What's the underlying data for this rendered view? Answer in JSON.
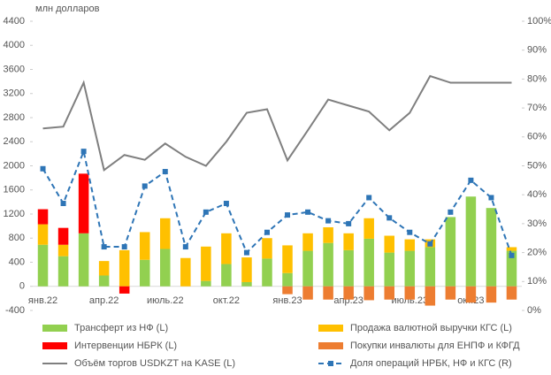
{
  "chart_data": {
    "type": "bar",
    "y_label": "млн долларов",
    "categories": [
      "янв.22",
      null,
      null,
      "апр.22",
      null,
      null,
      "июль.22",
      null,
      null,
      "окт.22",
      null,
      null,
      "янв.23",
      null,
      null,
      "апр.23",
      null,
      null,
      "июль.23",
      null,
      null,
      "окт.23",
      null,
      null
    ],
    "series": [
      {
        "name": "Трансферт из НФ (L)",
        "color": "#92d050",
        "type": "bar",
        "values": [
          690,
          500,
          880,
          180,
          0,
          440,
          620,
          0,
          90,
          370,
          70,
          460,
          220,
          590,
          720,
          600,
          790,
          560,
          590,
          650,
          1150,
          1490,
          1300,
          590
        ]
      },
      {
        "name": "Продажа валютной выручки КГС (L)",
        "color": "#ffc000",
        "type": "bar",
        "values": [
          340,
          190,
          0,
          240,
          600,
          460,
          510,
          470,
          570,
          510,
          410,
          340,
          460,
          290,
          260,
          280,
          340,
          280,
          190,
          130,
          0,
          0,
          0,
          60
        ]
      },
      {
        "name": "Интервенции НБРК (L)",
        "color": "#ff0000",
        "type": "bar",
        "values": [
          250,
          280,
          990,
          0,
          -120,
          0,
          0,
          0,
          0,
          0,
          0,
          0,
          0,
          0,
          0,
          0,
          0,
          0,
          0,
          0,
          0,
          0,
          0,
          0
        ]
      },
      {
        "name": "Покупки инвалюты для ЕНПФ и КФГД",
        "color": "#ed7d31",
        "type": "bar",
        "values": [
          0,
          0,
          0,
          0,
          0,
          0,
          0,
          0,
          0,
          0,
          0,
          0,
          -130,
          -220,
          -220,
          -220,
          -230,
          -220,
          -220,
          -320,
          -220,
          -270,
          -270,
          -220
        ]
      },
      {
        "name": "Объём торгов USDKZT на KASE (L)",
        "color": "#7f7f7f",
        "type": "line",
        "values": [
          2620,
          2650,
          3380,
          1930,
          2180,
          2100,
          2370,
          2150,
          2000,
          2400,
          2880,
          2940,
          2090,
          2590,
          3100,
          3000,
          2900,
          2590,
          2880,
          3490,
          3380,
          3380,
          3380,
          3380
        ]
      },
      {
        "name": "Доля операций НРБК, НФ и КГС (R)",
        "color": "#2e75b6",
        "type": "line",
        "axis": "y2",
        "dashed": true,
        "marker": "square",
        "values": [
          49,
          37,
          55,
          22,
          22,
          43,
          48,
          22,
          34,
          37,
          20,
          27,
          33,
          34,
          31,
          30,
          39,
          32,
          27,
          23,
          34,
          45,
          39,
          19
        ]
      }
    ],
    "ylim": [
      -400,
      4400
    ],
    "yticks": [
      -400,
      0,
      400,
      800,
      1200,
      1600,
      2000,
      2400,
      2800,
      3200,
      3600,
      4000,
      4400
    ],
    "y2lim": [
      0,
      100
    ],
    "y2ticks": [
      {
        "value": 0,
        "label": "0%"
      },
      {
        "value": 10,
        "label": "10%"
      },
      {
        "value": 20,
        "label": "20%"
      },
      {
        "value": 30,
        "label": "30%"
      },
      {
        "value": 40,
        "label": "40%"
      },
      {
        "value": 50,
        "label": "50%"
      },
      {
        "value": 60,
        "label": "60%"
      },
      {
        "value": 70,
        "label": "70%"
      },
      {
        "value": 80,
        "label": "80%"
      },
      {
        "value": 90,
        "label": "90%"
      },
      {
        "value": 100,
        "label": "100%"
      }
    ],
    "legend": "bottom"
  }
}
